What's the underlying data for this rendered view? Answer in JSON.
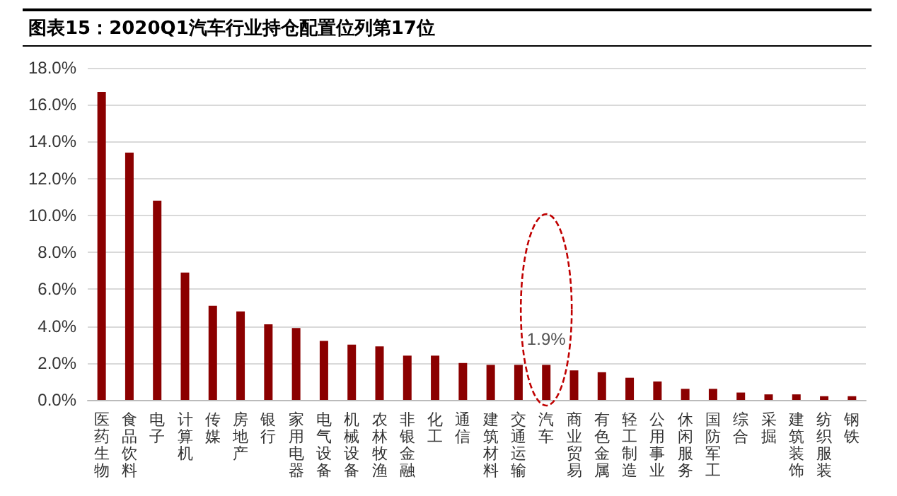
{
  "chart_data": {
    "type": "bar",
    "title": "图表15：2020Q1汽车行业持仓配置位列第17位",
    "categories": [
      "医药生物",
      "食品饮料",
      "电子",
      "计算机",
      "传媒",
      "房地产",
      "银行",
      "家用电器",
      "电气设备",
      "机械设备",
      "农林牧渔",
      "非银金融",
      "化工",
      "通信",
      "建筑材料",
      "交通运输",
      "汽车",
      "商业贸易",
      "有色金属",
      "轻工制造",
      "公用事业",
      "休闲服务",
      "国防军工",
      "综合",
      "采掘",
      "建筑装饰",
      "纺织服装",
      "钢铁"
    ],
    "values": [
      16.7,
      13.4,
      10.8,
      6.9,
      5.1,
      4.8,
      4.1,
      3.9,
      3.2,
      3.0,
      2.9,
      2.4,
      2.4,
      2.0,
      1.9,
      1.9,
      1.9,
      1.6,
      1.5,
      1.2,
      1.0,
      0.6,
      0.6,
      0.4,
      0.3,
      0.3,
      0.2,
      0.2
    ],
    "value_labels": [
      null,
      null,
      null,
      null,
      null,
      null,
      null,
      null,
      null,
      null,
      null,
      null,
      null,
      null,
      null,
      null,
      "1.9%",
      null,
      null,
      null,
      null,
      null,
      null,
      null,
      null,
      null,
      null,
      null
    ],
    "color": "#8b0000",
    "ylim": [
      0,
      18
    ],
    "yticks": [
      {
        "value": 0,
        "label": "0.0%"
      },
      {
        "value": 2,
        "label": "2.0%"
      },
      {
        "value": 4,
        "label": "4.0%"
      },
      {
        "value": 6,
        "label": "6.0%"
      },
      {
        "value": 8,
        "label": "8.0%"
      },
      {
        "value": 10,
        "label": "10.0%"
      },
      {
        "value": 12,
        "label": "12.0%"
      },
      {
        "value": 14,
        "label": "14.0%"
      },
      {
        "value": 16,
        "label": "16.0%"
      },
      {
        "value": 18,
        "label": "18.0%"
      }
    ],
    "grid": "y"
  }
}
